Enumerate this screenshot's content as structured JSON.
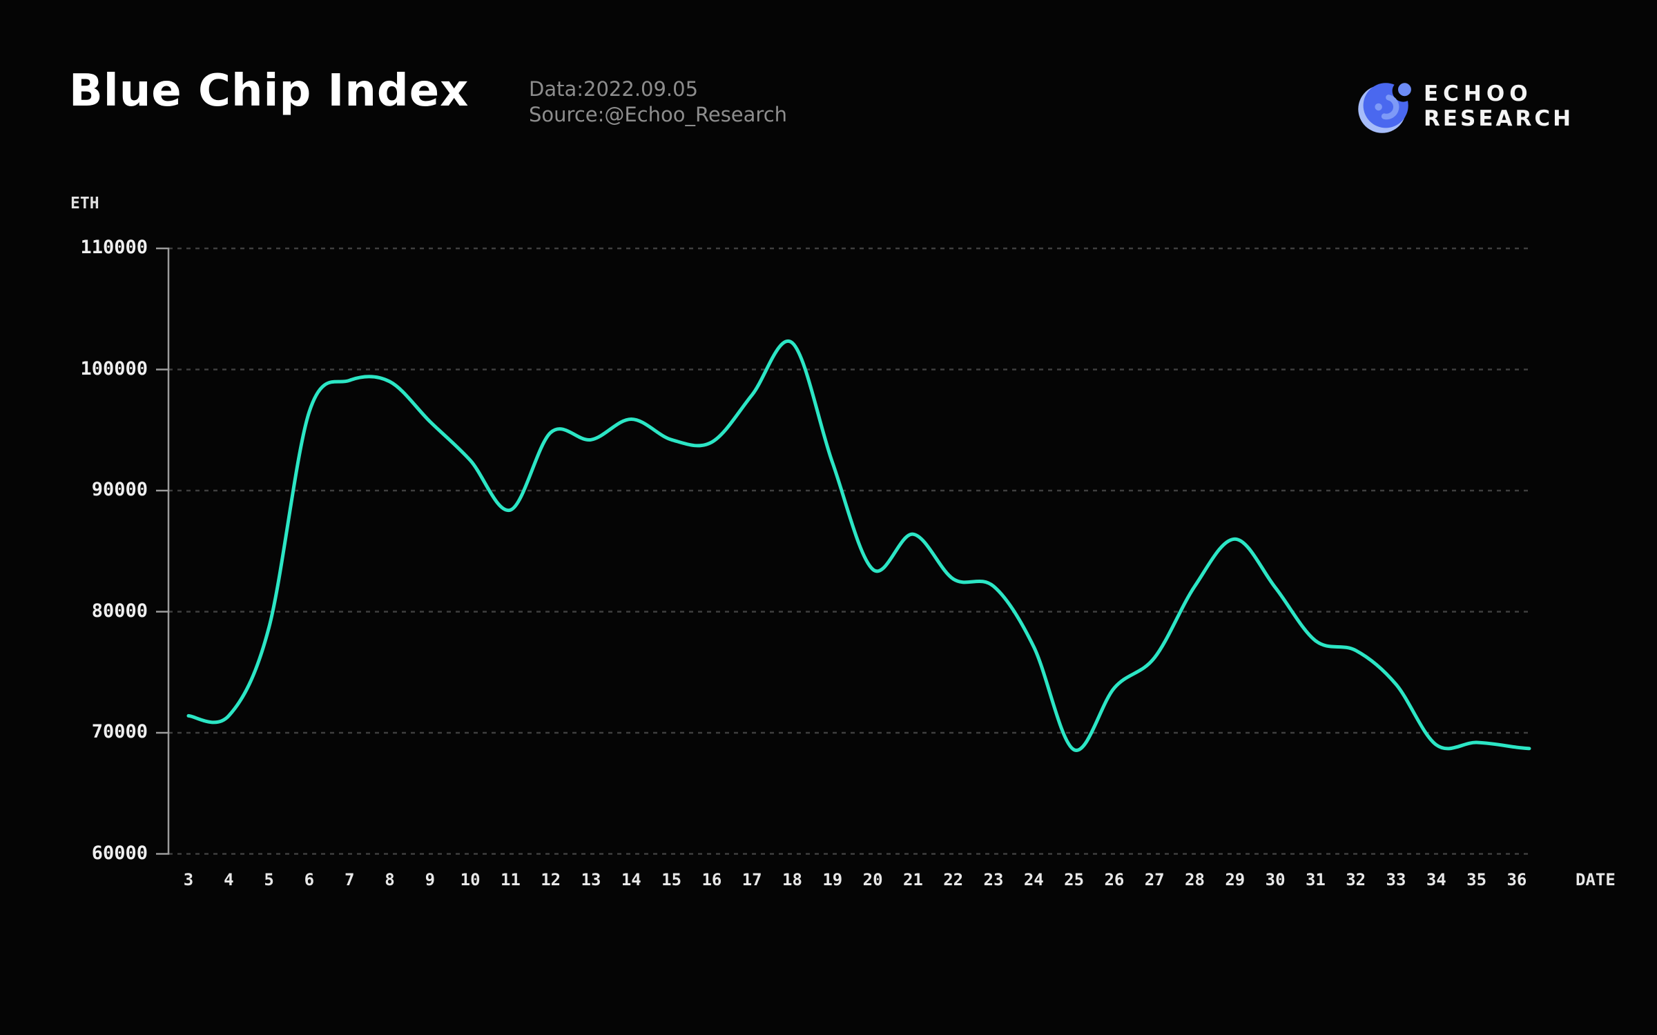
{
  "header": {
    "title": "Blue Chip Index",
    "data_line": "Data:2022.09.05",
    "source_line": "Source:@Echoo_Research"
  },
  "logo": {
    "line1": "ECHOO",
    "line2": "RESEARCH",
    "colors": {
      "primary": "#4A68EF",
      "light_crescent": "#A6BCF9",
      "dot": "#6D8CF6",
      "hook": "#7E9AF7",
      "bite": "#050505"
    }
  },
  "chart_data": {
    "type": "line",
    "title": "Blue Chip Index",
    "ylabel": "ETH",
    "xlabel": "DATE",
    "x": [
      3,
      4,
      5,
      6,
      7,
      8,
      9,
      10,
      11,
      12,
      13,
      14,
      15,
      16,
      17,
      18,
      19,
      20,
      21,
      22,
      23,
      24,
      25,
      26,
      27,
      28,
      29,
      30,
      31,
      32,
      33,
      34,
      35,
      36
    ],
    "values": [
      71400,
      71400,
      78700,
      96500,
      99100,
      99000,
      95700,
      92500,
      88400,
      94800,
      94200,
      95900,
      94200,
      94000,
      97900,
      102200,
      92300,
      83500,
      86400,
      82700,
      82100,
      77100,
      68600,
      73700,
      76200,
      82100,
      86000,
      82000,
      77600,
      76800,
      74000,
      69000,
      69200,
      68800
    ],
    "y_ticks": [
      110000,
      100000,
      90000,
      80000,
      70000,
      60000
    ],
    "ylim": [
      60000,
      110000
    ],
    "legend": "none",
    "grid": "horizontal-dashed",
    "line_color": "#2CE6C5",
    "grid_color": "#3f3f3f",
    "axis_color": "#9c9c9c",
    "background": "#050505"
  }
}
